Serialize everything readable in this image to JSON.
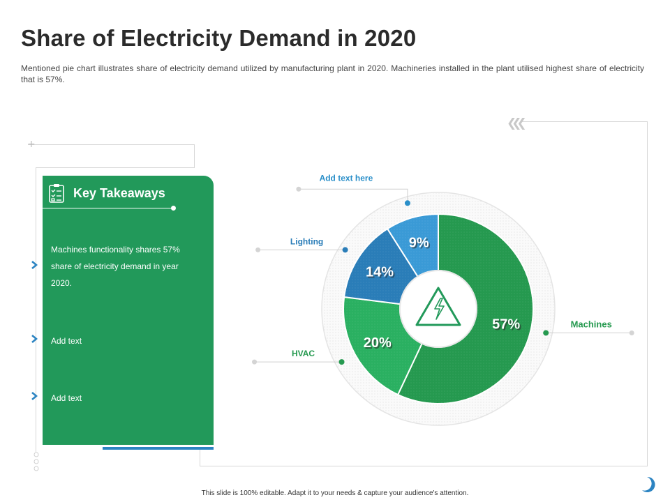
{
  "slide": {
    "title": "Share of Electricity Demand in 2020",
    "subtitle": "Mentioned pie chart illustrates share of electricity demand utilized by manufacturing plant in 2020. Machineries installed in the plant utilised highest share of electricity that is 57%.",
    "footer": "This slide is 100% editable. Adapt it to your needs & capture your audience's attention."
  },
  "takeaways": {
    "heading": "Key Takeaways",
    "items": [
      "Machines functionality shares 57% share of electricity demand in year 2020.",
      "Add text",
      "Add text"
    ]
  },
  "icons": {
    "panel": "clipboard-checklist-icon",
    "center": "high-voltage-warning-icon",
    "bullet": "chevron-right-icon",
    "decor": "triple-chevron-left-icon",
    "logo": "crescent-logo-icon"
  },
  "colors": {
    "panel": "#22995a",
    "accent_blue": "#2c84c2",
    "machines": "#25994f",
    "hvac": "#2ab061",
    "lighting": "#2a7db8",
    "other": "#3a9ad6"
  },
  "chart_data": {
    "type": "pie",
    "title": "Share of Electricity Demand in 2020",
    "slices": [
      {
        "label": "Machines",
        "value": 57,
        "display": "57%",
        "color": "#25994f",
        "label_color": "#25994f"
      },
      {
        "label": "HVAC",
        "value": 20,
        "display": "20%",
        "color": "#2ab061",
        "label_color": "#25994f"
      },
      {
        "label": "Lighting",
        "value": 14,
        "display": "14%",
        "color": "#2a7db8",
        "label_color": "#2a7db8"
      },
      {
        "label": "Add text here",
        "value": 9,
        "display": "9%",
        "color": "#3a9ad6",
        "label_color": "#2a8fc9"
      }
    ]
  }
}
